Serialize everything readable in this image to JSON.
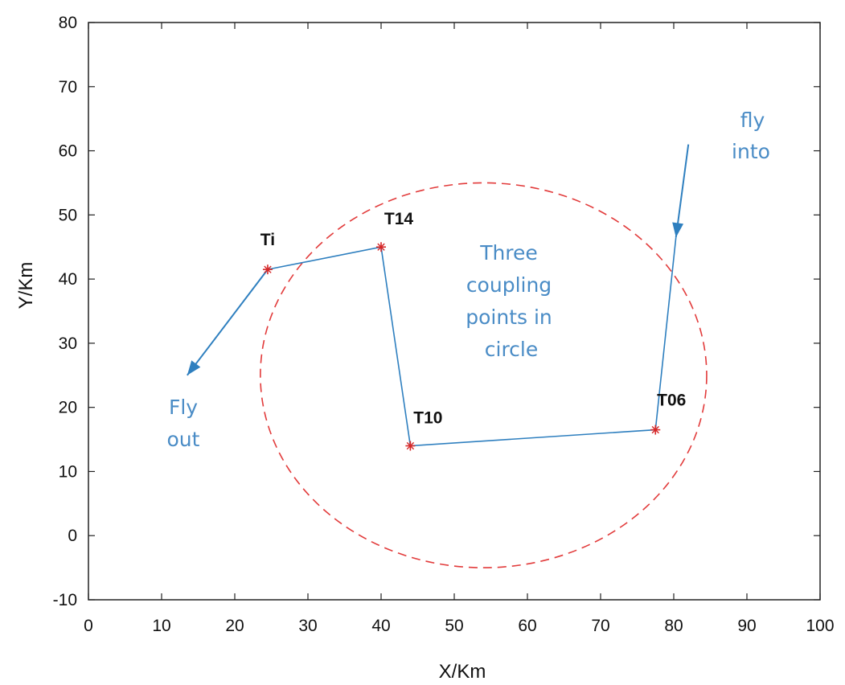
{
  "chart_data": {
    "type": "line",
    "xlabel": "X/Km",
    "ylabel": "Y/Km",
    "xlim": [
      0,
      100
    ],
    "ylim": [
      -10,
      80
    ],
    "xticks": [
      "0",
      "10",
      "20",
      "30",
      "40",
      "50",
      "60",
      "70",
      "80",
      "90",
      "100"
    ],
    "yticks": [
      "-10",
      "0",
      "10",
      "20",
      "30",
      "40",
      "50",
      "60",
      "70",
      "80"
    ],
    "grid": false,
    "colors": {
      "path": "#2e7fbf",
      "circle": "#e23b3b",
      "marker": "#d62728",
      "annotation": "#4a8cc6"
    },
    "circle": {
      "center": [
        54,
        25
      ],
      "radius_x": 30.5,
      "radius_y": 30,
      "style": "dashed"
    },
    "points": [
      {
        "label": "Ti",
        "x": 24.5,
        "y": 41.5
      },
      {
        "label": "T14",
        "x": 40,
        "y": 45
      },
      {
        "label": "T10",
        "x": 44,
        "y": 14
      },
      {
        "label": "T06",
        "x": 77.5,
        "y": 16.5
      }
    ],
    "arrow_in": {
      "from": [
        82,
        61
      ],
      "to": [
        80.3,
        46.5
      ]
    },
    "arrow_out": {
      "from": [
        24.5,
        41.5
      ],
      "to": [
        13.5,
        25
      ]
    },
    "annotations": {
      "fly_into": [
        "fly",
        "into"
      ],
      "fly_out": [
        "Fly",
        "out"
      ],
      "center_note": [
        "Three",
        "coupling",
        "points in",
        "circle"
      ]
    }
  }
}
